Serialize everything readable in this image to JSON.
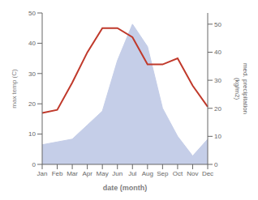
{
  "chart_data": {
    "type": "line",
    "categories": [
      "Jan",
      "Feb",
      "Mar",
      "Apr",
      "May",
      "Jun",
      "Jul",
      "Aug",
      "Sep",
      "Oct",
      "Nov",
      "Dec"
    ],
    "series": [
      {
        "type": "area",
        "axis": "y2",
        "color": "#c5cee8",
        "values": [
          7,
          8,
          9,
          14,
          19,
          37,
          50,
          42,
          20,
          10,
          3,
          9
        ]
      },
      {
        "type": "line",
        "color": "#c0392b",
        "values": [
          17,
          18,
          27,
          37,
          45,
          45,
          42,
          33,
          33,
          35,
          26,
          19
        ]
      }
    ],
    "xlabel": "date (month)",
    "ylabel": "max temp (C)",
    "y2label": "med. precipitation\n(kg/m2)",
    "ylim": [
      0,
      50
    ],
    "yticks": [
      0,
      10,
      20,
      30,
      40,
      50
    ],
    "y2lim": [
      0,
      54
    ],
    "y2ticks": [
      0,
      10,
      20,
      30,
      40,
      50
    ],
    "grid": false
  }
}
